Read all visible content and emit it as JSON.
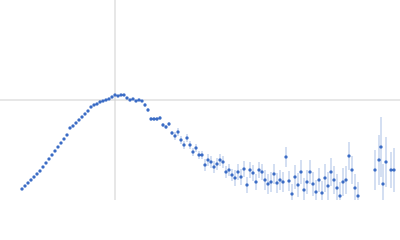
{
  "chart_data": {
    "type": "scatter",
    "xlim": [
      -1.15,
      2.85
    ],
    "ylim": [
      -1,
      1
    ],
    "zero_lines": true,
    "series": [
      {
        "color": "#3b6cc5",
        "error_color": "#a9bfe6",
        "x": [
          -0.93,
          -0.9,
          -0.87,
          -0.84,
          -0.81,
          -0.78,
          -0.75,
          -0.72,
          -0.69,
          -0.66,
          -0.63,
          -0.6,
          -0.57,
          -0.54,
          -0.51,
          -0.48,
          -0.45,
          -0.42,
          -0.39,
          -0.36,
          -0.33,
          -0.3,
          -0.27,
          -0.24,
          -0.21,
          -0.18,
          -0.15,
          -0.12,
          -0.09,
          -0.06,
          -0.03,
          0.0,
          0.03,
          0.06,
          0.09,
          0.12,
          0.15,
          0.18,
          0.21,
          0.24,
          0.27,
          0.3,
          0.33,
          0.36,
          0.39,
          0.42,
          0.45,
          0.48,
          0.51,
          0.54,
          0.57,
          0.6,
          0.63,
          0.66,
          0.69,
          0.72,
          0.75,
          0.78,
          0.81,
          0.84,
          0.87,
          0.9,
          0.93,
          0.96,
          0.99,
          1.02,
          1.05,
          1.08,
          1.11,
          1.14,
          1.17,
          1.2,
          1.23,
          1.26,
          1.29,
          1.32,
          1.35,
          1.38,
          1.41,
          1.44,
          1.47,
          1.5,
          1.53,
          1.56,
          1.59,
          1.62,
          1.65,
          1.68,
          1.71,
          1.74,
          1.77,
          1.8,
          1.83,
          1.86,
          1.89,
          1.92,
          1.95,
          1.98,
          2.01,
          2.04,
          2.07,
          2.1,
          2.13,
          2.16,
          2.19,
          2.22,
          2.25,
          2.28,
          2.31,
          2.34,
          2.37,
          2.4,
          2.43,
          2.6,
          2.64,
          2.66,
          2.68,
          2.71,
          2.76,
          2.79
        ],
        "y": [
          -0.89,
          -0.86,
          -0.83,
          -0.8,
          -0.77,
          -0.74,
          -0.71,
          -0.67,
          -0.63,
          -0.59,
          -0.55,
          -0.51,
          -0.47,
          -0.43,
          -0.39,
          -0.35,
          -0.28,
          -0.26,
          -0.23,
          -0.2,
          -0.17,
          -0.14,
          -0.11,
          -0.07,
          -0.05,
          -0.04,
          -0.02,
          -0.01,
          0.0,
          0.01,
          0.03,
          0.05,
          0.04,
          0.05,
          0.05,
          0.02,
          0.0,
          0.01,
          -0.01,
          0.0,
          -0.01,
          -0.05,
          -0.1,
          -0.19,
          -0.19,
          -0.19,
          -0.18,
          -0.25,
          -0.27,
          -0.24,
          -0.33,
          -0.36,
          -0.32,
          -0.4,
          -0.45,
          -0.38,
          -0.45,
          -0.52,
          -0.48,
          -0.55,
          -0.55,
          -0.65,
          -0.6,
          -0.62,
          -0.67,
          -0.64,
          -0.6,
          -0.62,
          -0.72,
          -0.7,
          -0.75,
          -0.78,
          -0.72,
          -0.77,
          -0.69,
          -0.85,
          -0.7,
          -0.73,
          -0.82,
          -0.7,
          -0.72,
          -0.8,
          -0.84,
          -0.82,
          -0.74,
          -0.83,
          -0.8,
          -0.82,
          -0.57,
          -0.81,
          -0.94,
          -0.77,
          -0.85,
          -0.72,
          -0.9,
          -0.82,
          -0.72,
          -0.84,
          -0.92,
          -0.8,
          -0.93,
          -0.78,
          -0.86,
          -0.72,
          -0.8,
          -0.88,
          -0.96,
          -0.82,
          -0.8,
          -0.56,
          -0.7,
          -0.88,
          -0.96,
          -0.7,
          -0.6,
          -0.47,
          -0.84,
          -0.62,
          -0.7,
          -0.7
        ],
        "errors": [
          0.01,
          0.01,
          0.01,
          0.01,
          0.01,
          0.01,
          0.01,
          0.01,
          0.01,
          0.01,
          0.01,
          0.01,
          0.01,
          0.01,
          0.01,
          0.01,
          0.01,
          0.01,
          0.01,
          0.01,
          0.01,
          0.01,
          0.01,
          0.01,
          0.01,
          0.01,
          0.01,
          0.01,
          0.01,
          0.01,
          0.01,
          0.01,
          0.01,
          0.01,
          0.01,
          0.01,
          0.01,
          0.01,
          0.01,
          0.01,
          0.01,
          0.02,
          0.02,
          0.02,
          0.02,
          0.02,
          0.02,
          0.02,
          0.02,
          0.02,
          0.02,
          0.04,
          0.04,
          0.04,
          0.04,
          0.04,
          0.04,
          0.04,
          0.04,
          0.04,
          0.04,
          0.06,
          0.06,
          0.06,
          0.06,
          0.06,
          0.06,
          0.06,
          0.06,
          0.06,
          0.06,
          0.08,
          0.08,
          0.08,
          0.08,
          0.08,
          0.08,
          0.08,
          0.08,
          0.08,
          0.08,
          0.1,
          0.1,
          0.1,
          0.1,
          0.1,
          0.1,
          0.1,
          0.1,
          0.1,
          0.1,
          0.12,
          0.12,
          0.12,
          0.12,
          0.12,
          0.12,
          0.12,
          0.12,
          0.12,
          0.12,
          0.14,
          0.14,
          0.14,
          0.14,
          0.14,
          0.14,
          0.14,
          0.14,
          0.14,
          0.14,
          0.14,
          0.14,
          0.2,
          0.25,
          0.3,
          0.2,
          0.25,
          0.18,
          0.22
        ]
      }
    ]
  }
}
